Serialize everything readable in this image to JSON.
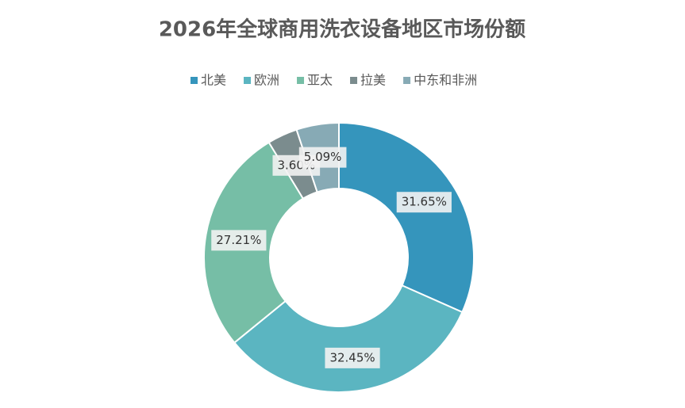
{
  "chart_data": {
    "type": "donut",
    "title": "2026年全球商用洗衣设备地区市场份额",
    "categories": [
      "北美",
      "欧洲",
      "亚太",
      "拉美",
      "中东和非洲"
    ],
    "values": [
      31.65,
      32.45,
      27.21,
      3.6,
      5.09
    ],
    "value_labels": [
      "31.65%",
      "32.45%",
      "27.21%",
      "3.60%",
      "5.09%"
    ],
    "colors": [
      "#3595bc",
      "#5bb5c1",
      "#76bea6",
      "#7b8c8e",
      "#87aab5"
    ],
    "legend": "top"
  }
}
